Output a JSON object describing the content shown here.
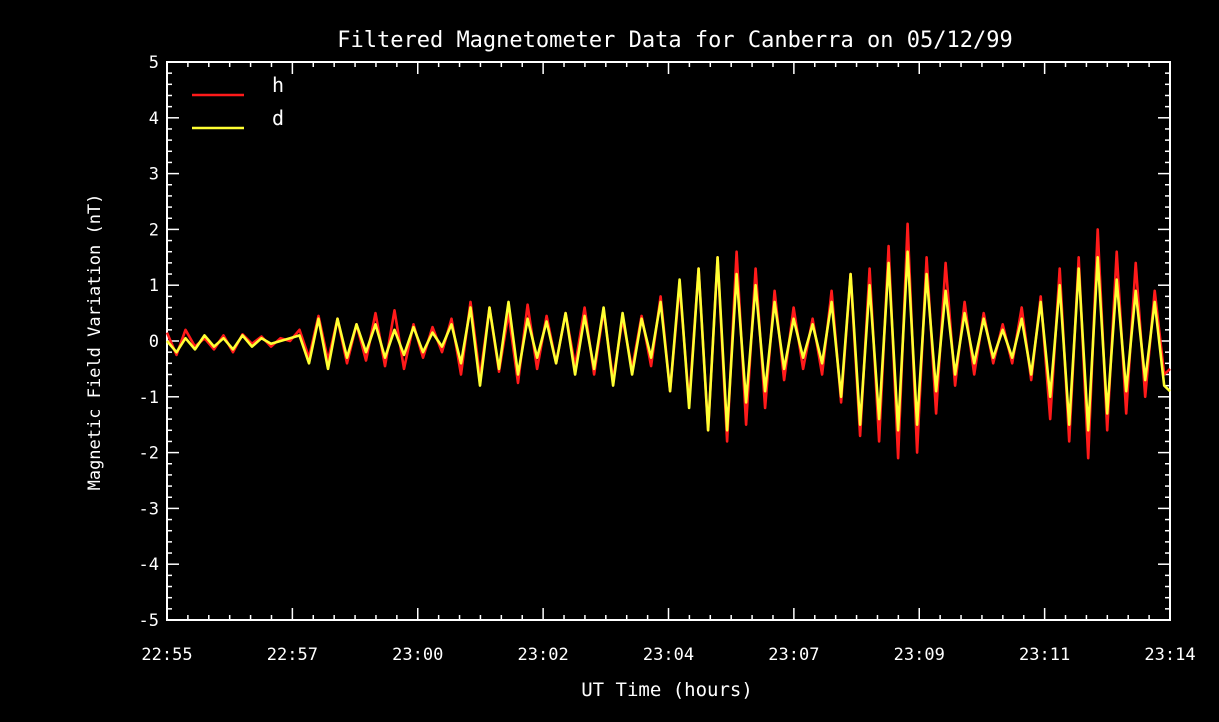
{
  "chart_data": {
    "type": "line",
    "title": "Filtered Magnetometer Data for Canberra on 05/12/99",
    "xlabel": "UT Time (hours)",
    "ylabel": "Magnetic Field Variation (nT)",
    "ylim": [
      -5,
      5
    ],
    "xlim_minutes": [
      0,
      19
    ],
    "x_tick_labels": [
      "22:55",
      "22:57",
      "23:00",
      "23:02",
      "23:04",
      "23:07",
      "23:09",
      "23:11",
      "23:14"
    ],
    "y_tick_labels": [
      "5",
      "4",
      "3",
      "2",
      "1",
      "0",
      "-1",
      "-2",
      "-3",
      "-4",
      "-5"
    ],
    "legend": {
      "position": "top-left"
    },
    "background_color": "#000000",
    "axis_color": "#ffffff",
    "series": [
      {
        "name": "h",
        "color": "#ff1a1a",
        "x": [
          0.0,
          0.18,
          0.35,
          0.53,
          0.71,
          0.89,
          1.07,
          1.25,
          1.43,
          1.61,
          1.79,
          1.97,
          2.15,
          2.33,
          2.51,
          2.69,
          2.87,
          3.05,
          3.23,
          3.41,
          3.59,
          3.77,
          3.95,
          4.13,
          4.31,
          4.49,
          4.67,
          4.85,
          5.03,
          5.21,
          5.39,
          5.57,
          5.75,
          5.93,
          6.11,
          6.29,
          6.47,
          6.65,
          6.83,
          7.01,
          7.19,
          7.37,
          7.55,
          7.73,
          7.91,
          8.09,
          8.27,
          8.45,
          8.63,
          8.81,
          8.99,
          9.17,
          9.35,
          9.53,
          9.71,
          9.89,
          10.07,
          10.25,
          10.43,
          10.61,
          10.79,
          10.97,
          11.15,
          11.33,
          11.51,
          11.69,
          11.87,
          12.05,
          12.23,
          12.41,
          12.59,
          12.77,
          12.95,
          13.13,
          13.31,
          13.49,
          13.67,
          13.85,
          14.03,
          14.21,
          14.39,
          14.57,
          14.75,
          14.93,
          15.11,
          15.29,
          15.47,
          15.65,
          15.83,
          16.01,
          16.19,
          16.37,
          16.55,
          16.73,
          16.91,
          17.09,
          17.27,
          17.45,
          17.63,
          17.81,
          17.99,
          18.17,
          18.35,
          18.53,
          18.71,
          18.89,
          19.0
        ],
        "y": [
          0.15,
          -0.25,
          0.2,
          -0.1,
          0.05,
          -0.15,
          0.1,
          -0.2,
          0.12,
          -0.05,
          0.08,
          -0.1,
          0.05,
          0.0,
          0.2,
          -0.3,
          0.45,
          -0.35,
          0.4,
          -0.4,
          0.3,
          -0.35,
          0.5,
          -0.45,
          0.55,
          -0.5,
          0.3,
          -0.3,
          0.25,
          -0.2,
          0.4,
          -0.6,
          0.7,
          -0.65,
          0.6,
          -0.55,
          0.5,
          -0.75,
          0.65,
          -0.5,
          0.45,
          -0.4,
          0.5,
          -0.45,
          0.6,
          -0.6,
          0.55,
          -0.7,
          0.4,
          -0.5,
          0.45,
          -0.45,
          0.8,
          -0.9,
          1.0,
          -1.1,
          1.3,
          -1.6,
          1.5,
          -1.8,
          1.6,
          -1.5,
          1.3,
          -1.2,
          0.9,
          -0.7,
          0.6,
          -0.5,
          0.4,
          -0.6,
          0.9,
          -1.1,
          1.2,
          -1.7,
          1.3,
          -1.8,
          1.7,
          -2.1,
          2.1,
          -2.0,
          1.5,
          -1.3,
          1.4,
          -0.8,
          0.7,
          -0.6,
          0.5,
          -0.4,
          0.3,
          -0.4,
          0.6,
          -0.7,
          0.8,
          -1.4,
          1.3,
          -1.8,
          1.5,
          -2.1,
          2.0,
          -1.6,
          1.6,
          -1.3,
          1.4,
          -1.0,
          0.9,
          -0.6,
          -0.5
        ]
      },
      {
        "name": "d",
        "color": "#ffff33",
        "x": [
          0.0,
          0.18,
          0.35,
          0.53,
          0.71,
          0.89,
          1.07,
          1.25,
          1.43,
          1.61,
          1.79,
          1.97,
          2.15,
          2.33,
          2.51,
          2.69,
          2.87,
          3.05,
          3.23,
          3.41,
          3.59,
          3.77,
          3.95,
          4.13,
          4.31,
          4.49,
          4.67,
          4.85,
          5.03,
          5.21,
          5.39,
          5.57,
          5.75,
          5.93,
          6.11,
          6.29,
          6.47,
          6.65,
          6.83,
          7.01,
          7.19,
          7.37,
          7.55,
          7.73,
          7.91,
          8.09,
          8.27,
          8.45,
          8.63,
          8.81,
          8.99,
          9.17,
          9.35,
          9.53,
          9.71,
          9.89,
          10.07,
          10.25,
          10.43,
          10.61,
          10.79,
          10.97,
          11.15,
          11.33,
          11.51,
          11.69,
          11.87,
          12.05,
          12.23,
          12.41,
          12.59,
          12.77,
          12.95,
          13.13,
          13.31,
          13.49,
          13.67,
          13.85,
          14.03,
          14.21,
          14.39,
          14.57,
          14.75,
          14.93,
          15.11,
          15.29,
          15.47,
          15.65,
          15.83,
          16.01,
          16.19,
          16.37,
          16.55,
          16.73,
          16.91,
          17.09,
          17.27,
          17.45,
          17.63,
          17.81,
          17.99,
          18.17,
          18.35,
          18.53,
          18.71,
          18.89,
          19.0
        ],
        "y": [
          0.0,
          -0.2,
          0.05,
          -0.15,
          0.1,
          -0.1,
          0.05,
          -0.15,
          0.1,
          -0.1,
          0.05,
          -0.05,
          0.0,
          0.05,
          0.1,
          -0.4,
          0.4,
          -0.5,
          0.4,
          -0.3,
          0.3,
          -0.2,
          0.3,
          -0.3,
          0.2,
          -0.25,
          0.25,
          -0.2,
          0.15,
          -0.1,
          0.3,
          -0.4,
          0.6,
          -0.8,
          0.6,
          -0.5,
          0.7,
          -0.6,
          0.4,
          -0.3,
          0.35,
          -0.4,
          0.5,
          -0.6,
          0.45,
          -0.5,
          0.6,
          -0.8,
          0.5,
          -0.6,
          0.4,
          -0.3,
          0.7,
          -0.9,
          1.1,
          -1.2,
          1.3,
          -1.6,
          1.5,
          -1.6,
          1.2,
          -1.1,
          1.0,
          -0.9,
          0.7,
          -0.5,
          0.4,
          -0.3,
          0.3,
          -0.4,
          0.7,
          -1.0,
          1.2,
          -1.5,
          1.0,
          -1.4,
          1.4,
          -1.6,
          1.6,
          -1.5,
          1.2,
          -0.9,
          0.9,
          -0.6,
          0.5,
          -0.4,
          0.4,
          -0.3,
          0.2,
          -0.3,
          0.4,
          -0.6,
          0.7,
          -1.0,
          1.0,
          -1.5,
          1.3,
          -1.6,
          1.5,
          -1.3,
          1.1,
          -0.9,
          0.9,
          -0.7,
          0.7,
          -0.8,
          -0.9
        ]
      }
    ]
  }
}
